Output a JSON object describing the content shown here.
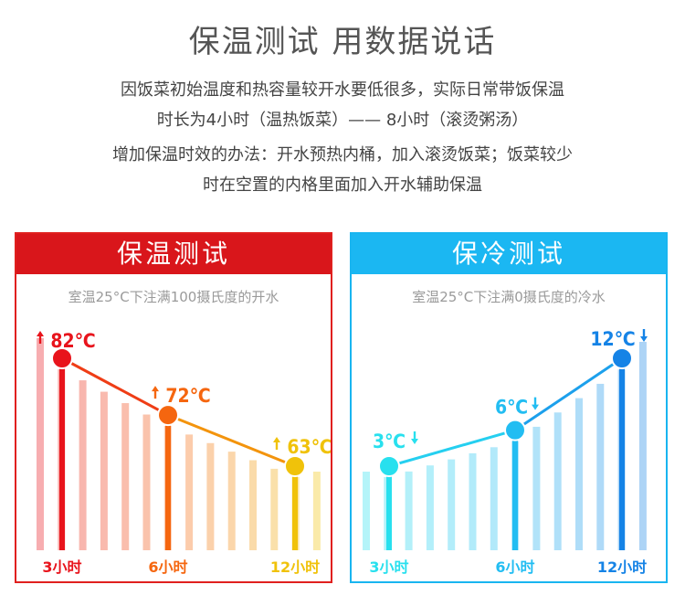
{
  "header": {
    "title": "保温测试 用数据说话",
    "lines": [
      "因饭菜初始温度和热容量较开水要低很多，实际日常带饭保温",
      "时长为4小时（温热饭菜）—— 8小时（滚烫粥汤）",
      "增加保温时效的办法：开水预热内桶，加入滚烫饭菜；饭菜较少",
      "时在空置的内格里面加入开水辅助保温"
    ]
  },
  "panels": {
    "hot": {
      "title": "保温测试",
      "subtitle": "室温25°C下注满100摄氏度的开水"
    },
    "cold": {
      "title": "保冷测试",
      "subtitle": "室温25°C下注满0摄氏度的冷水"
    }
  },
  "chart_data": [
    {
      "type": "line",
      "title": "保温测试",
      "categories": [
        "3小时",
        "6小时",
        "12小时"
      ],
      "values": [
        82,
        72,
        63
      ],
      "point_labels": [
        "82℃",
        "72℃",
        "63℃"
      ],
      "trend": "up-arrow",
      "colors": [
        "#e8141c",
        "#f5660f",
        "#f0c20a"
      ]
    },
    {
      "type": "line",
      "title": "保冷测试",
      "categories": [
        "3小时",
        "6小时",
        "12小时"
      ],
      "values": [
        3,
        6,
        12
      ],
      "point_labels": [
        "3℃",
        "6℃",
        "12℃"
      ],
      "trend": "down-arrow",
      "colors": [
        "#28e0ee",
        "#22bdf2",
        "#1583e6"
      ]
    }
  ]
}
